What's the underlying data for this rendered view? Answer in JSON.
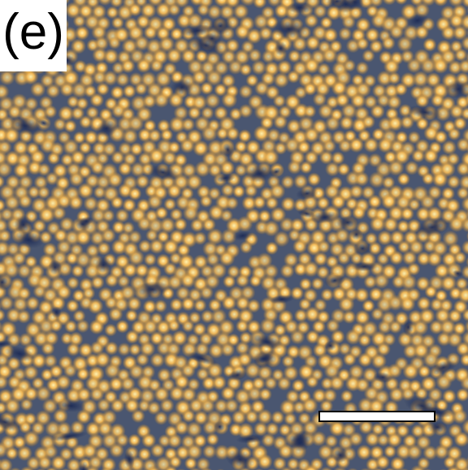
{
  "figure": {
    "panel_label": "(e)",
    "texture": "afm-particle-monolayer",
    "colors": {
      "background": "#3c4a66",
      "particle_core": "#fff2b0",
      "particle_mid": "#f0b550",
      "particle_edge": "#b9822f",
      "void": "#1d2b55",
      "label_box": "#ffffff",
      "label_text": "#000000",
      "scale_bar_fill": "#ffffff",
      "scale_bar_border": "#000000"
    }
  }
}
